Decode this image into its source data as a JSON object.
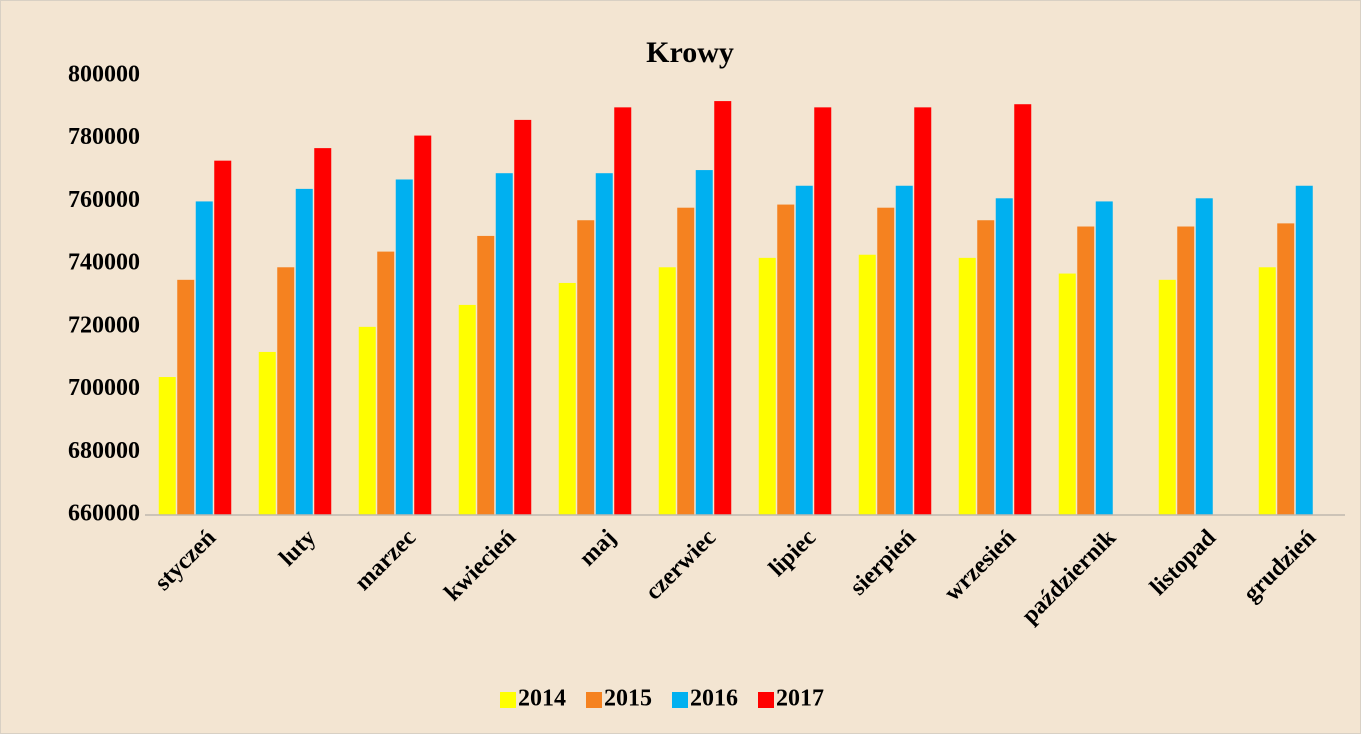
{
  "chart_data": {
    "type": "bar",
    "title": "Krowy",
    "categories": [
      "styczeń",
      "luty",
      "marzec",
      "kwiecień",
      "maj",
      "czerwiec",
      "lipiec",
      "sierpień",
      "wrzesień",
      "październik",
      "listopad",
      "grudzień"
    ],
    "series": [
      {
        "name": "2014",
        "color": "#ffff00",
        "values": [
          704000,
          712000,
          720000,
          727000,
          734000,
          739000,
          742000,
          743000,
          742000,
          737000,
          735000,
          739000
        ]
      },
      {
        "name": "2015",
        "color": "#f58220",
        "values": [
          735000,
          739000,
          744000,
          749000,
          754000,
          758000,
          759000,
          758000,
          754000,
          752000,
          752000,
          753000
        ]
      },
      {
        "name": "2016",
        "color": "#00b0f0",
        "values": [
          760000,
          764000,
          767000,
          769000,
          769000,
          770000,
          765000,
          765000,
          761000,
          760000,
          761000,
          765000
        ]
      },
      {
        "name": "2017",
        "color": "#ff0000",
        "values": [
          773000,
          777000,
          781000,
          786000,
          790000,
          792000,
          790000,
          790000,
          791000,
          null,
          null,
          null
        ]
      }
    ],
    "ylim": [
      660000,
      800000
    ],
    "yticks": [
      660000,
      680000,
      700000,
      720000,
      740000,
      760000,
      780000,
      800000
    ],
    "grid": false,
    "legend": "bottom"
  }
}
